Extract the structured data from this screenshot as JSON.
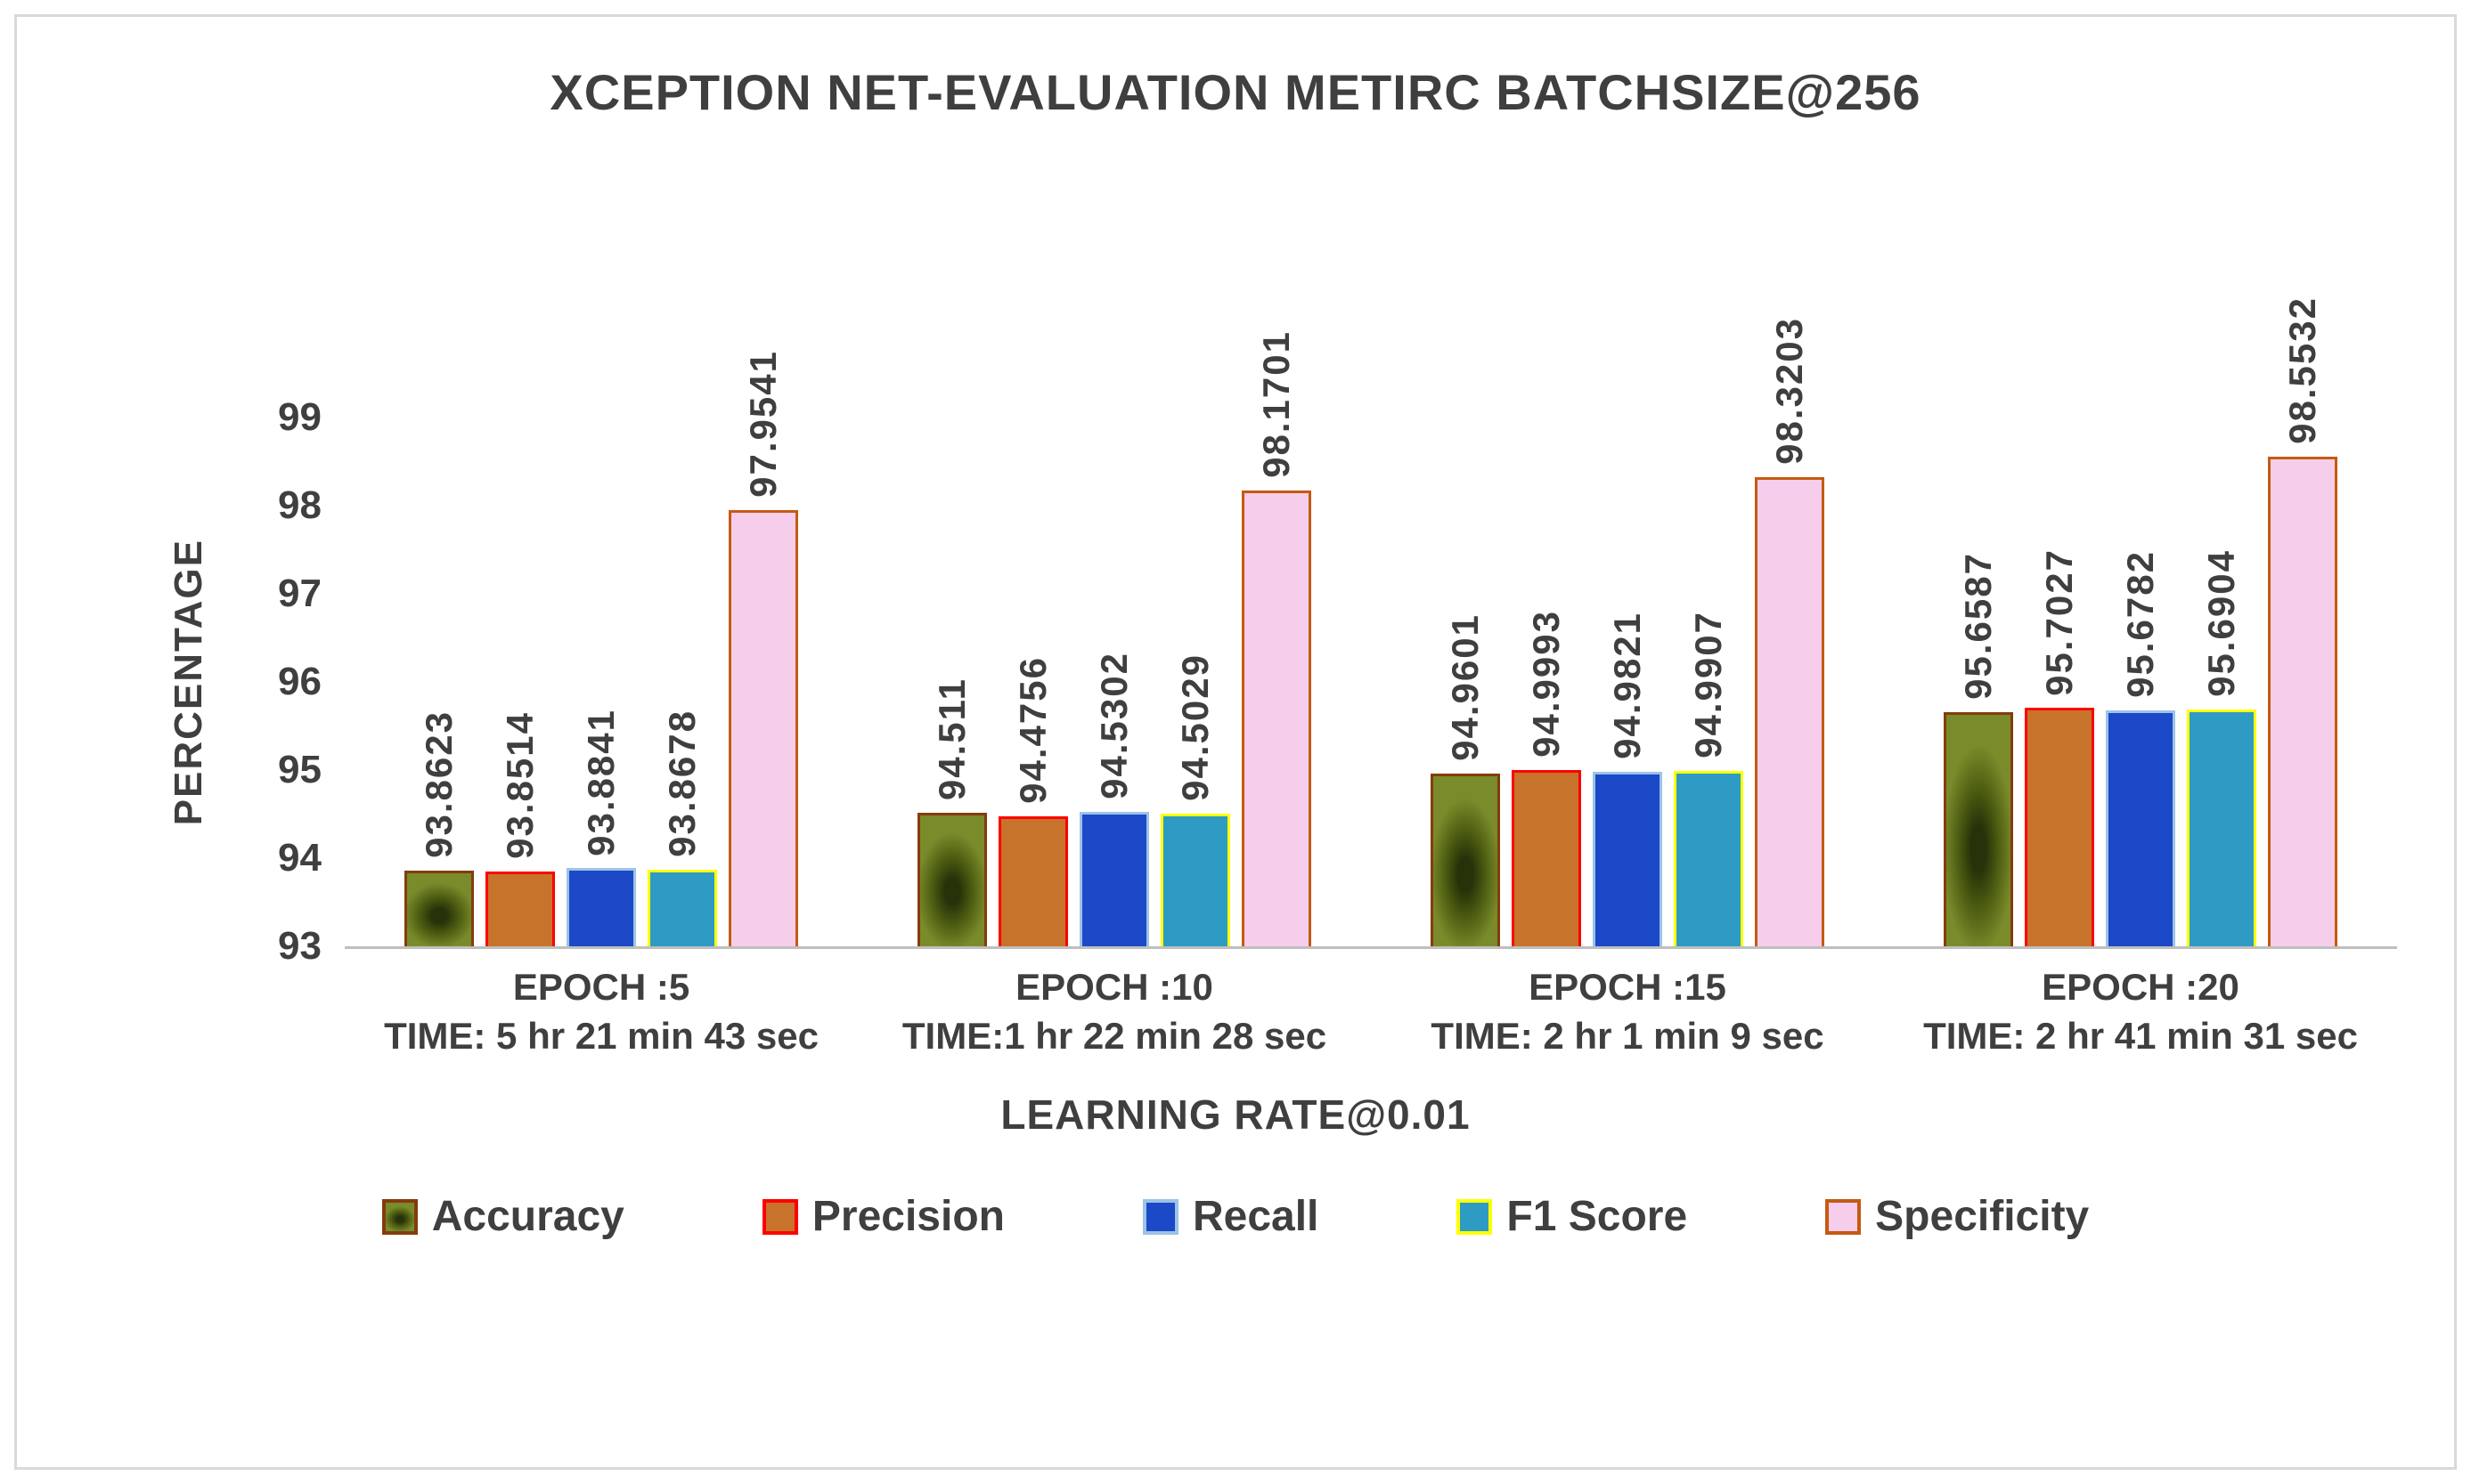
{
  "chart_data": {
    "type": "bar",
    "title": "XCEPTION NET-EVALUATION METIRC BATCHSIZE@256",
    "xlabel": "LEARNING RATE@0.01",
    "ylabel": "PERCENTAGE",
    "ylim": [
      93,
      99
    ],
    "yticks": [
      93,
      94,
      95,
      96,
      97,
      98,
      99
    ],
    "grid": false,
    "legend_position": "bottom",
    "text_color": "#3f3f3f",
    "axis_line_color": "#bfbfbf",
    "categories": [
      {
        "epoch": "EPOCH :5",
        "time": "TIME: 5 hr 21 min 43 sec"
      },
      {
        "epoch": "EPOCH :10",
        "time": "TIME:1 hr 22 min 28 sec"
      },
      {
        "epoch": "EPOCH :15",
        "time": "TIME: 2 hr 1 min 9 sec"
      },
      {
        "epoch": "EPOCH :20",
        "time": "TIME: 2 hr 41 min 31 sec"
      }
    ],
    "series": [
      {
        "name": "Accuracy",
        "fill": "#7a8b2b",
        "fill_mid": "#4a5a10",
        "fill_dark": "#26330a",
        "border": "#843c0c",
        "mottled": true,
        "values": [
          93.8623,
          94.511,
          94.9601,
          95.6587
        ],
        "labels": [
          "93.8623",
          "94.511",
          "94.9601",
          "95.6587"
        ]
      },
      {
        "name": "Precision",
        "fill": "#c8732c",
        "border": "#ff0000",
        "mottled": false,
        "values": [
          93.8514,
          94.4756,
          94.9993,
          95.7027
        ],
        "labels": [
          "93.8514",
          "94.4756",
          "94.9993",
          "95.7027"
        ]
      },
      {
        "name": "Recall",
        "fill": "#1b49c8",
        "border": "#9dc3e6",
        "mottled": false,
        "values": [
          93.8841,
          94.5302,
          94.9821,
          95.6782
        ],
        "labels": [
          "93.8841",
          "94.5302",
          "94.9821",
          "95.6782"
        ]
      },
      {
        "name": "F1 Score",
        "fill": "#2e9bc4",
        "border": "#ffff00",
        "mottled": false,
        "values": [
          93.8678,
          94.5029,
          94.9907,
          95.6904
        ],
        "labels": [
          "93.8678",
          "94.5029",
          "94.9907",
          "95.6904"
        ]
      },
      {
        "name": "Specificity",
        "fill": "#f6cdeb",
        "border": "#c55a11",
        "mottled": false,
        "values": [
          97.9541,
          98.1701,
          98.3203,
          98.5532
        ],
        "labels": [
          "97.9541",
          "98.1701",
          "98.3203",
          "98.5532"
        ]
      }
    ]
  }
}
